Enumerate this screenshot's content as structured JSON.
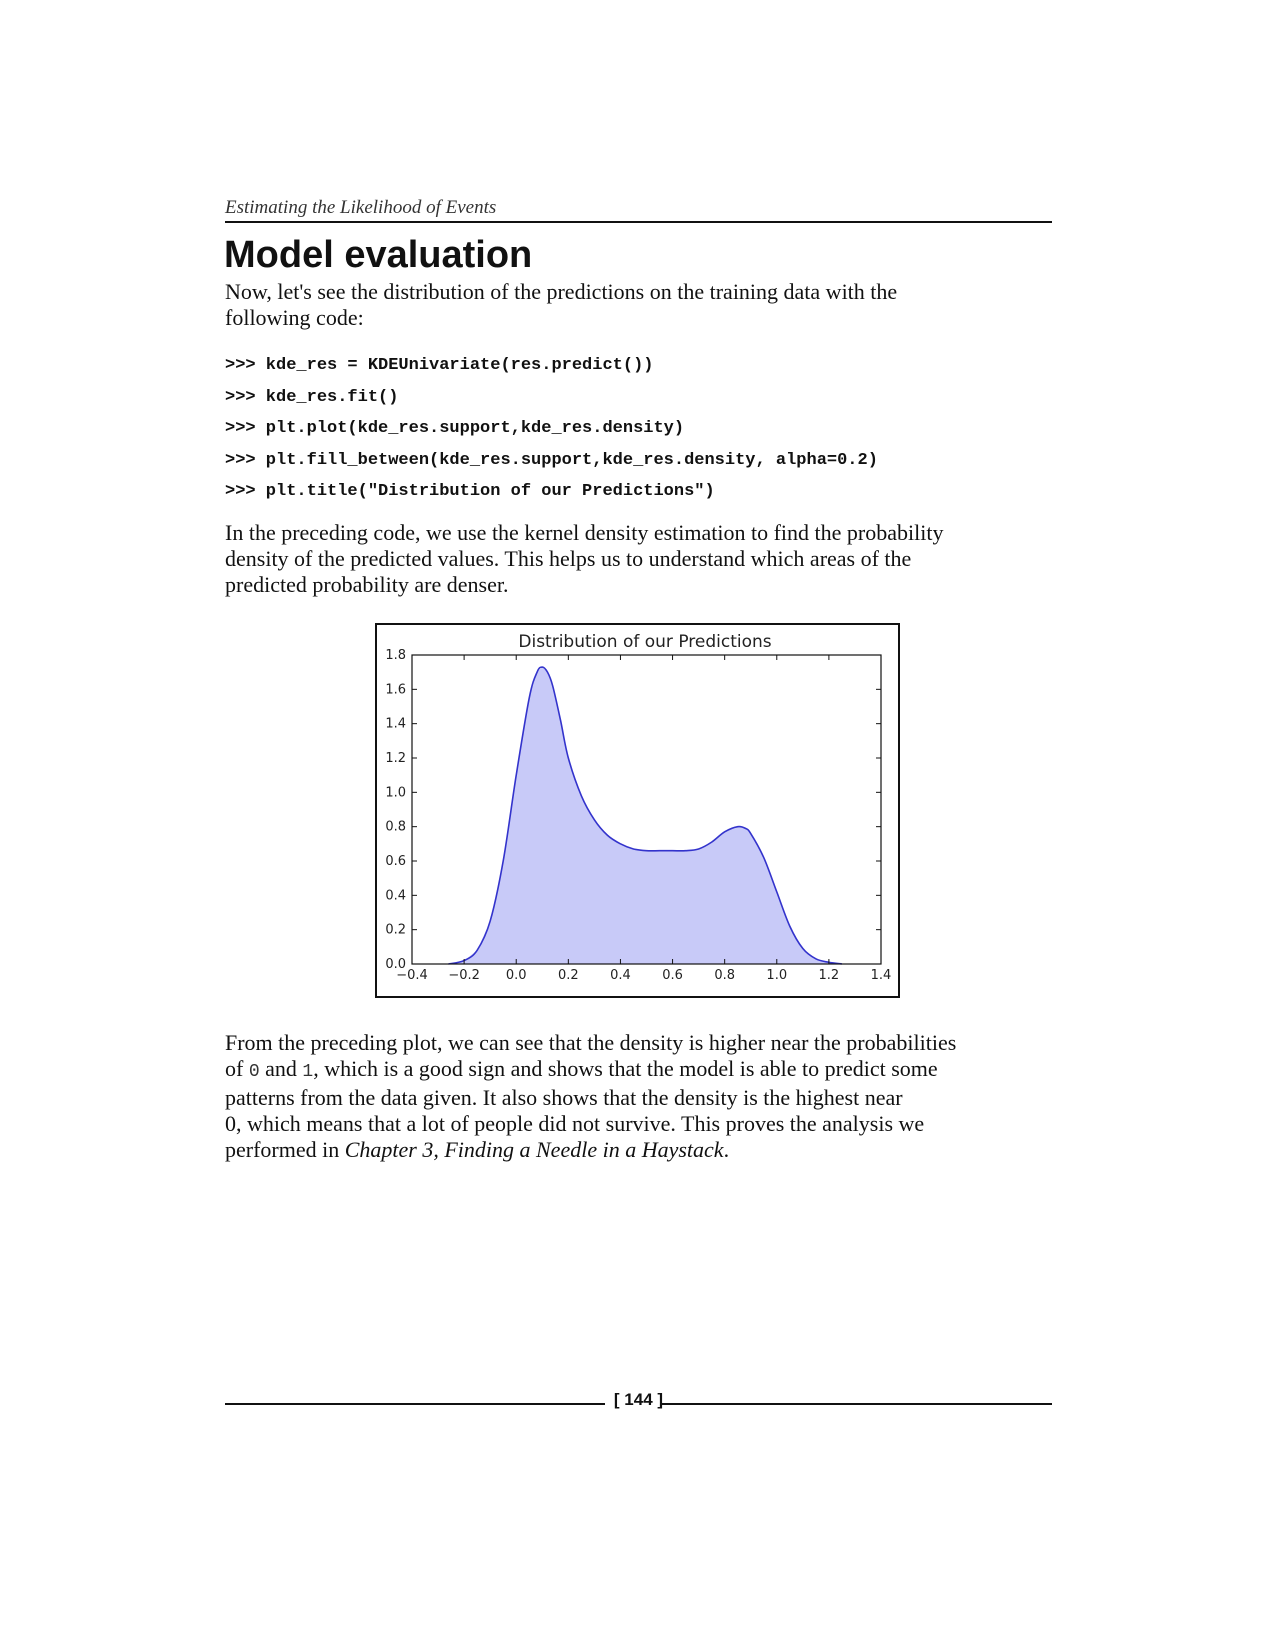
{
  "header": {
    "running_title": "Estimating the Likelihood of Events"
  },
  "section": {
    "title": "Model evaluation"
  },
  "intro": {
    "line1": "Now, let's see the distribution of the predictions on the training data with the",
    "line2": "following code:"
  },
  "code": [
    ">>> kde_res = KDEUnivariate(res.predict())",
    ">>> kde_res.fit()",
    ">>> plt.plot(kde_res.support,kde_res.density)",
    ">>> plt.fill_between(kde_res.support,kde_res.density, alpha=0.2)",
    ">>> plt.title(\"Distribution of our Predictions\")"
  ],
  "explanation": {
    "line1": "In the preceding code, we use the kernel density estimation to find the probability",
    "line2": "density of the predicted values. This helps us to understand which areas of the",
    "line3": "predicted probability are denser."
  },
  "chart_data": {
    "type": "area",
    "title": "Distribution of our Predictions",
    "xlabel": "",
    "ylabel": "",
    "xlim": [
      -0.4,
      1.4
    ],
    "ylim": [
      0.0,
      1.8
    ],
    "xticks": [
      "−0.4",
      "−0.2",
      "0.0",
      "0.2",
      "0.4",
      "0.6",
      "0.8",
      "1.0",
      "1.2",
      "1.4"
    ],
    "yticks": [
      "0.0",
      "0.2",
      "0.4",
      "0.6",
      "0.8",
      "1.0",
      "1.2",
      "1.4",
      "1.6",
      "1.8"
    ],
    "grid": false,
    "x": [
      -0.26,
      -0.2,
      -0.15,
      -0.1,
      -0.05,
      0.0,
      0.05,
      0.08,
      0.1,
      0.12,
      0.14,
      0.17,
      0.2,
      0.25,
      0.3,
      0.35,
      0.4,
      0.45,
      0.5,
      0.55,
      0.6,
      0.65,
      0.7,
      0.75,
      0.8,
      0.85,
      0.88,
      0.9,
      0.95,
      1.0,
      1.05,
      1.1,
      1.15,
      1.2,
      1.25
    ],
    "y": [
      0.0,
      0.02,
      0.08,
      0.25,
      0.6,
      1.1,
      1.55,
      1.7,
      1.73,
      1.7,
      1.62,
      1.42,
      1.2,
      0.98,
      0.84,
      0.75,
      0.7,
      0.67,
      0.66,
      0.66,
      0.66,
      0.66,
      0.67,
      0.71,
      0.77,
      0.8,
      0.79,
      0.76,
      0.62,
      0.42,
      0.22,
      0.09,
      0.03,
      0.01,
      0.0
    ],
    "line_color": "#3333cc",
    "fill_color": "#c8caf8"
  },
  "conclusion": {
    "line1": "From the preceding plot, we can see that the density is higher near the probabilities",
    "line2_pre": "of ",
    "code_zero": "0",
    "line2_mid": " and ",
    "code_one": "1",
    "line2_post": ", which is a good sign and shows that the model is able to predict some",
    "line3": "patterns from the data given. It also shows that the density is the highest near",
    "line4": "0, which means that a lot of people did not survive. This proves the analysis we",
    "line5_pre": "performed in ",
    "chapter_ref": "Chapter 3, Finding a Needle in a Haystack",
    "line5_post": "."
  },
  "footer": {
    "page_number": "[ 144 ]"
  }
}
